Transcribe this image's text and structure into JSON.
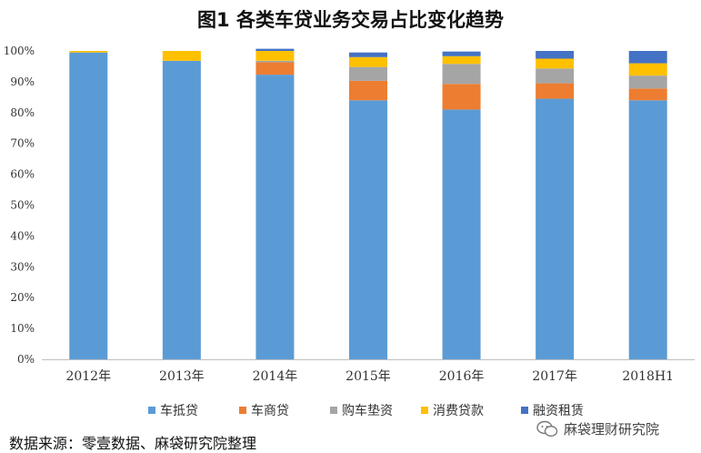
{
  "chart_data": {
    "type": "bar",
    "stacked": true,
    "title": "图1  各类车贷业务交易占比变化趋势",
    "categories": [
      "2012年",
      "2013年",
      "2014年",
      "2015年",
      "2016年",
      "2017年",
      "2018H1"
    ],
    "ylim": [
      0,
      100
    ],
    "yticks": [
      "0%",
      "10%",
      "20%",
      "30%",
      "40%",
      "50%",
      "60%",
      "70%",
      "80%",
      "90%",
      "100%"
    ],
    "grid": false,
    "legend_position": "bottom",
    "series": [
      {
        "name": "车抵贷",
        "color": "#5B9BD5",
        "values": [
          99.5,
          96.8,
          92.3,
          84.0,
          81.0,
          84.5,
          84.0
        ]
      },
      {
        "name": "车商贷",
        "color": "#ED7D31",
        "values": [
          0,
          0,
          4.0,
          6.3,
          8.3,
          5.0,
          3.8
        ]
      },
      {
        "name": "购车垫资",
        "color": "#A5A5A5",
        "values": [
          0,
          0,
          0.5,
          4.5,
          6.5,
          4.8,
          4.2
        ]
      },
      {
        "name": "消费贷款",
        "color": "#FFC000",
        "values": [
          0.5,
          3.2,
          3.2,
          3.2,
          2.5,
          3.2,
          4.0
        ]
      },
      {
        "name": "融资租赁",
        "color": "#4472C4",
        "values": [
          0,
          0,
          0.7,
          1.5,
          1.5,
          2.5,
          4.0
        ]
      }
    ]
  },
  "source_text": "数据来源：零壹数据、麻袋研究院整理",
  "watermark_text": "麻袋理财研究院"
}
